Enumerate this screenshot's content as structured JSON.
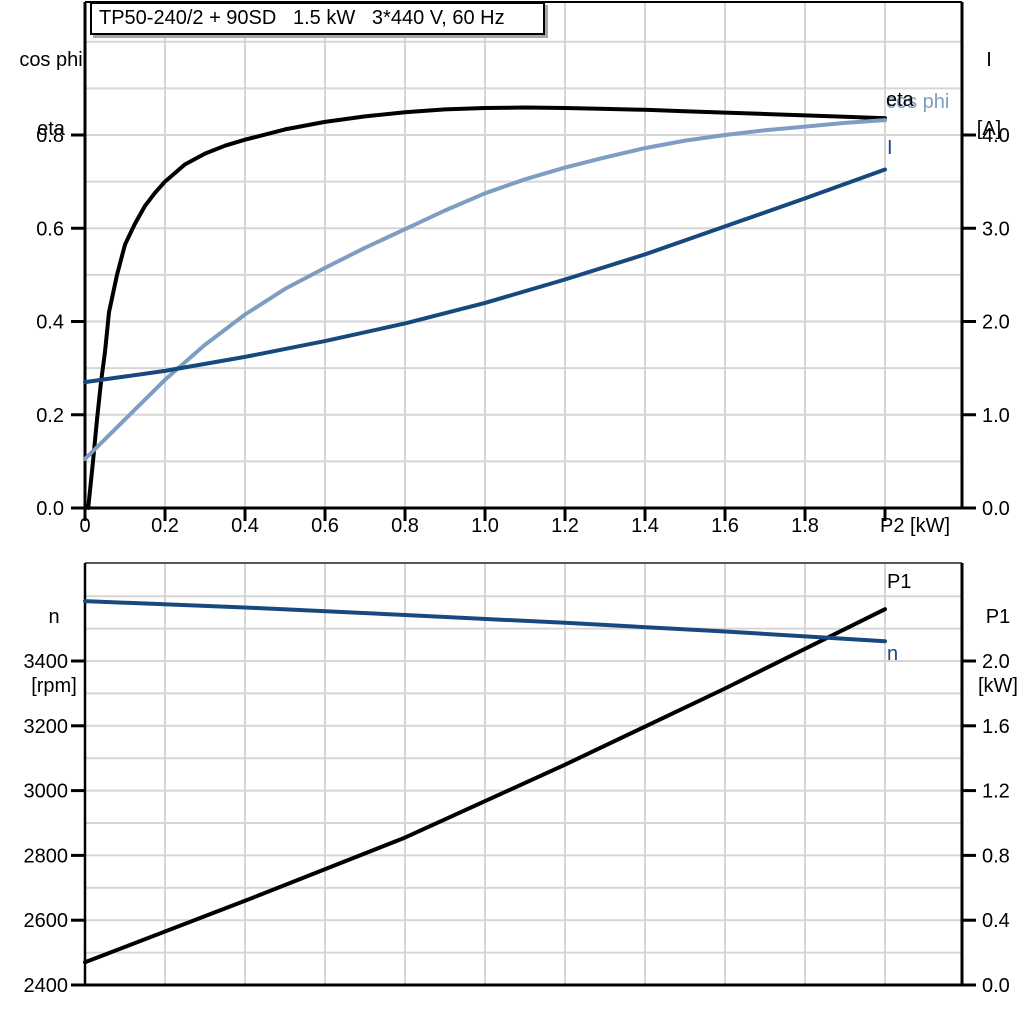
{
  "title_box": {
    "text": "TP50-240/2 + 90SD   1.5 kW   3*440 V, 60 Hz"
  },
  "colors": {
    "black": "#000000",
    "dark_blue": "#17497e",
    "light_blue": "#7d9dc2",
    "grid": "#d6d6d6",
    "frame_gray": "#595959",
    "shadow": "#a8a8a8"
  },
  "chart_data": [
    {
      "type": "line",
      "title": "TP50-240/2 + 90SD   1.5 kW   3*440 V, 60 Hz",
      "grid": "on",
      "x_axis": {
        "label": "P2 [kW]",
        "min": 0,
        "max": 2.19,
        "ticks": [
          {
            "v": 0.0,
            "label": "0"
          },
          {
            "v": 0.2,
            "label": "0.2"
          },
          {
            "v": 0.4,
            "label": "0.4"
          },
          {
            "v": 0.6,
            "label": "0.6"
          },
          {
            "v": 0.8,
            "label": "0.8"
          },
          {
            "v": 1.0,
            "label": "1.0"
          },
          {
            "v": 1.2,
            "label": "1.2"
          },
          {
            "v": 1.4,
            "label": "1.4"
          },
          {
            "v": 1.6,
            "label": "1.6"
          },
          {
            "v": 1.8,
            "label": "1.8"
          },
          {
            "v": 2.0,
            "label": ""
          }
        ]
      },
      "left_axis": {
        "title_lines": [
          "cos phi",
          "eta"
        ],
        "min": 0,
        "max": 1.08,
        "grid_step": 0.1,
        "ticks": [
          {
            "v": 0.0,
            "label": "0.0"
          },
          {
            "v": 0.2,
            "label": "0.2"
          },
          {
            "v": 0.4,
            "label": "0.4"
          },
          {
            "v": 0.6,
            "label": "0.6"
          },
          {
            "v": 0.8,
            "label": "0.8"
          }
        ]
      },
      "right_axis": {
        "title_lines": [
          "I",
          "[A]"
        ],
        "min": 0,
        "max": 5.4,
        "ticks": [
          {
            "v": 0.0,
            "label": "0.0"
          },
          {
            "v": 1.0,
            "label": "1.0"
          },
          {
            "v": 2.0,
            "label": "2.0"
          },
          {
            "v": 3.0,
            "label": "3.0"
          },
          {
            "v": 4.0,
            "label": "4.0"
          }
        ]
      },
      "series": [
        {
          "name": "eta",
          "color": "black",
          "axis": "left",
          "x": [
            0.008,
            0.02,
            0.03,
            0.04,
            0.05,
            0.06,
            0.08,
            0.1,
            0.125,
            0.15,
            0.175,
            0.2,
            0.25,
            0.3,
            0.35,
            0.4,
            0.5,
            0.6,
            0.7,
            0.8,
            0.9,
            1.0,
            1.1,
            1.2,
            1.3,
            1.4,
            1.5,
            1.6,
            1.7,
            1.8,
            1.9,
            2.0
          ],
          "y": [
            0.0,
            0.1,
            0.19,
            0.27,
            0.335,
            0.42,
            0.5,
            0.565,
            0.61,
            0.648,
            0.676,
            0.7,
            0.737,
            0.76,
            0.777,
            0.79,
            0.812,
            0.828,
            0.84,
            0.849,
            0.855,
            0.858,
            0.859,
            0.858,
            0.856,
            0.854,
            0.851,
            0.848,
            0.845,
            0.842,
            0.839,
            0.836
          ]
        },
        {
          "name": "cos phi",
          "color": "light_blue",
          "axis": "left",
          "x": [
            0.0,
            0.1,
            0.2,
            0.3,
            0.4,
            0.5,
            0.6,
            0.7,
            0.8,
            0.9,
            1.0,
            1.1,
            1.2,
            1.3,
            1.4,
            1.5,
            1.6,
            1.7,
            1.8,
            1.9,
            2.0
          ],
          "y": [
            0.105,
            0.19,
            0.275,
            0.35,
            0.415,
            0.47,
            0.515,
            0.558,
            0.598,
            0.638,
            0.675,
            0.705,
            0.73,
            0.752,
            0.772,
            0.788,
            0.8,
            0.81,
            0.818,
            0.826,
            0.832
          ]
        },
        {
          "name": "I",
          "color": "dark_blue",
          "axis": "right",
          "x": [
            0.0,
            0.2,
            0.4,
            0.6,
            0.8,
            1.0,
            1.2,
            1.4,
            1.6,
            1.8,
            2.0
          ],
          "y": [
            1.35,
            1.47,
            1.62,
            1.79,
            1.98,
            2.2,
            2.45,
            2.72,
            3.02,
            3.32,
            3.63
          ]
        }
      ]
    },
    {
      "type": "line",
      "grid": "on",
      "x_axis": {
        "label": "",
        "min": 0,
        "max": 2.19,
        "ticks": []
      },
      "left_axis": {
        "title_lines": [
          "n",
          "[rpm]"
        ],
        "min": 2400,
        "max": 3700,
        "grid_step": 100,
        "ticks": [
          {
            "v": 2400,
            "label": "2400"
          },
          {
            "v": 2600,
            "label": "2600"
          },
          {
            "v": 2800,
            "label": "2800"
          },
          {
            "v": 3000,
            "label": "3000"
          },
          {
            "v": 3200,
            "label": "3200"
          },
          {
            "v": 3400,
            "label": "3400"
          }
        ]
      },
      "right_axis": {
        "title_lines": [
          "P1",
          "[kW]"
        ],
        "min": 0,
        "max": 2.6,
        "ticks": [
          {
            "v": 0.0,
            "label": "0.0"
          },
          {
            "v": 0.4,
            "label": "0.4"
          },
          {
            "v": 0.8,
            "label": "0.8"
          },
          {
            "v": 1.2,
            "label": "1.2"
          },
          {
            "v": 1.6,
            "label": "1.6"
          },
          {
            "v": 2.0,
            "label": "2.0"
          }
        ]
      },
      "series": [
        {
          "name": "P1",
          "color": "black",
          "axis": "right",
          "x": [
            0.0,
            0.4,
            0.8,
            1.2,
            1.6,
            2.0
          ],
          "y": [
            0.14,
            0.52,
            0.91,
            1.36,
            1.83,
            2.32
          ]
        },
        {
          "name": "n",
          "color": "dark_blue",
          "axis": "left",
          "x": [
            0.0,
            0.4,
            0.8,
            1.2,
            1.6,
            2.0
          ],
          "y": [
            3585,
            3565,
            3542,
            3518,
            3491,
            3461
          ]
        }
      ]
    }
  ]
}
